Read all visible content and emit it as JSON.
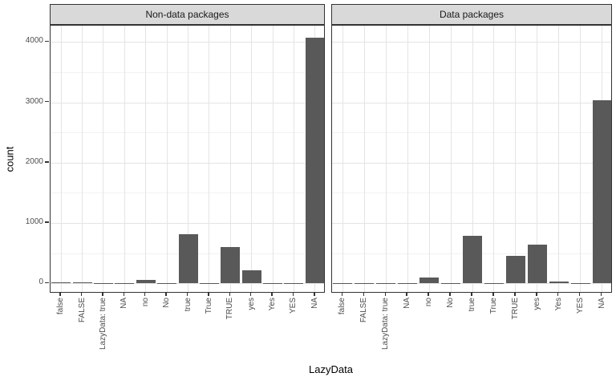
{
  "chart_data": {
    "type": "bar",
    "title": "",
    "xlabel": "LazyData",
    "ylabel": "count",
    "categories": [
      "false",
      "FALSE",
      "LazyData: true",
      "NA",
      "no",
      "No",
      "true",
      "True",
      "TRUE",
      "yes",
      "Yes",
      "YES",
      "NA"
    ],
    "facets": [
      {
        "label": "Non-data packages",
        "values": [
          12,
          12,
          2,
          10,
          60,
          3,
          820,
          10,
          600,
          210,
          8,
          3,
          4070
        ]
      },
      {
        "label": "Data packages",
        "values": [
          10,
          10,
          2,
          3,
          100,
          2,
          790,
          8,
          450,
          640,
          35,
          2,
          3030
        ]
      }
    ],
    "yticks": [
      0,
      1000,
      2000,
      3000,
      4000
    ],
    "yticks_minor": [
      500,
      1500,
      2500,
      3500
    ],
    "ylim": [
      -170,
      4270
    ],
    "grid": "major and minor horizontal, major vertical per category",
    "legend": false,
    "bar_color": "#595959",
    "strip_bg_color": "#d9d9d9",
    "panel_border_color": "#333333",
    "grid_major_color": "#e4e4e4",
    "grid_minor_color": "#f2f2f2",
    "axis_text_color": "#4d4d4d"
  }
}
